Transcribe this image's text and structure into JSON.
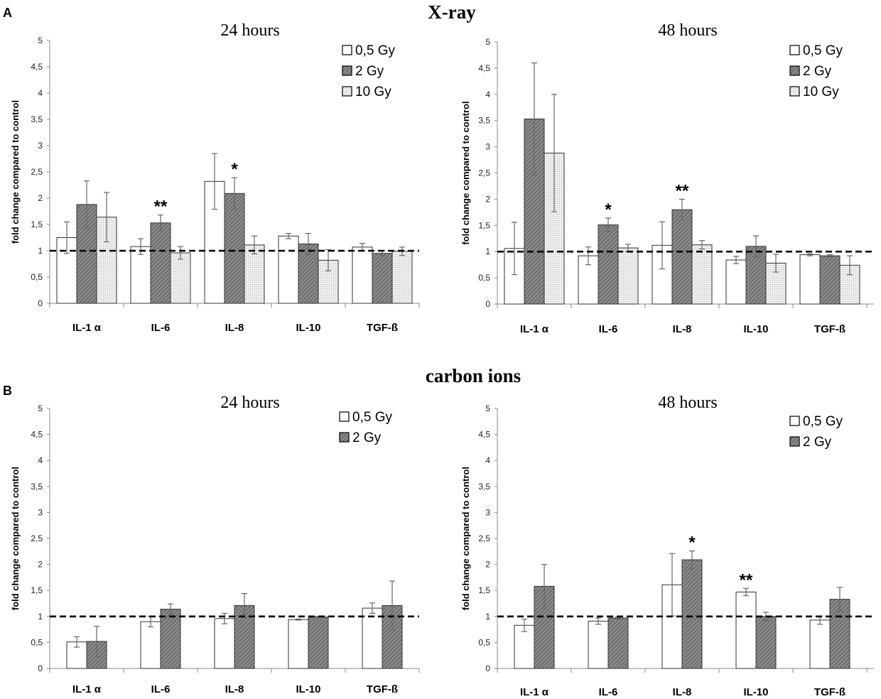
{
  "figure": {
    "sections": [
      {
        "letter": "A",
        "title": "X-ray"
      },
      {
        "letter": "B",
        "title": "carbon ions"
      }
    ]
  },
  "colors": {
    "series_fills": [
      "#ffffff",
      "#7f7f7f",
      "#ebebeb"
    ],
    "bar_stroke": "#333333",
    "error_bar": "#666666",
    "reference_line": "#000000"
  },
  "chart_data": [
    {
      "type": "bar",
      "section": "X-ray",
      "title": "24 hours",
      "ylabel": "fold change compared to control",
      "xlabel": "",
      "ylim": [
        0,
        5
      ],
      "yticks": [
        "0",
        "0,5",
        "1",
        "1,5",
        "2",
        "2,5",
        "3",
        "3,5",
        "4",
        "4,5",
        "5"
      ],
      "grid": false,
      "legend_position": "top-right",
      "reference_line": 1,
      "categories": [
        "IL-1 α",
        "IL-6",
        "IL-8",
        "IL-10",
        "TGF-ß"
      ],
      "series": [
        {
          "name": "0,5 Gy",
          "pattern": "plain",
          "values": [
            1.25,
            1.08,
            2.32,
            1.28,
            1.07
          ],
          "errors": [
            0.3,
            0.15,
            0.53,
            0.05,
            0.07
          ],
          "sig": [
            "",
            "",
            "",
            "",
            ""
          ]
        },
        {
          "name": "2 Gy",
          "pattern": "hatch",
          "values": [
            1.88,
            1.53,
            2.09,
            1.13,
            0.95
          ],
          "errors": [
            0.45,
            0.15,
            0.3,
            0.2,
            0.05
          ],
          "sig": [
            "",
            "**",
            "*",
            "",
            ""
          ]
        },
        {
          "name": "10 Gy",
          "pattern": "dots",
          "values": [
            1.64,
            0.96,
            1.11,
            0.82,
            0.99
          ],
          "errors": [
            0.47,
            0.12,
            0.17,
            0.2,
            0.08
          ],
          "sig": [
            "",
            "",
            "",
            "",
            ""
          ]
        }
      ]
    },
    {
      "type": "bar",
      "section": "X-ray",
      "title": "48 hours",
      "ylabel": "fold change compared to control",
      "xlabel": "",
      "ylim": [
        0,
        5
      ],
      "yticks": [
        "0",
        "0,5",
        "1",
        "1,5",
        "2",
        "2,5",
        "3",
        "3,5",
        "4",
        "4,5",
        "5"
      ],
      "grid": false,
      "legend_position": "top-right",
      "reference_line": 1,
      "categories": [
        "IL-1 α",
        "IL-6",
        "IL-8",
        "IL-10",
        "TGF-ß"
      ],
      "series": [
        {
          "name": "0,5 Gy",
          "pattern": "plain",
          "values": [
            1.06,
            0.92,
            1.12,
            0.84,
            0.94
          ],
          "errors": [
            0.5,
            0.17,
            0.45,
            0.07,
            0.02
          ],
          "sig": [
            "",
            "",
            "",
            "",
            ""
          ]
        },
        {
          "name": "2 Gy",
          "pattern": "hatch",
          "values": [
            3.53,
            1.51,
            1.8,
            1.1,
            0.92
          ],
          "errors": [
            1.07,
            0.13,
            0.2,
            0.2,
            0.02
          ],
          "sig": [
            "",
            "*",
            "**",
            "",
            ""
          ]
        },
        {
          "name": "10 Gy",
          "pattern": "dots",
          "values": [
            2.88,
            1.07,
            1.13,
            0.78,
            0.74
          ],
          "errors": [
            1.12,
            0.07,
            0.08,
            0.17,
            0.18
          ],
          "sig": [
            "",
            "",
            "",
            "",
            ""
          ]
        }
      ]
    },
    {
      "type": "bar",
      "section": "carbon ions",
      "title": "24 hours",
      "ylabel": "fold change compared to control",
      "xlabel": "",
      "ylim": [
        0,
        5
      ],
      "yticks": [
        "0",
        "0,5",
        "1",
        "1,5",
        "2",
        "2,5",
        "3",
        "3,5",
        "4",
        "4,5",
        "5"
      ],
      "grid": false,
      "legend_position": "top-right",
      "reference_line": 1,
      "categories": [
        "IL-1 α",
        "IL-6",
        "IL-8",
        "IL-10",
        "TGF-ß"
      ],
      "series": [
        {
          "name": "0,5 Gy",
          "pattern": "plain",
          "values": [
            0.51,
            0.9,
            0.96,
            0.94,
            1.16
          ],
          "errors": [
            0.1,
            0.1,
            0.1,
            0.01,
            0.1
          ],
          "sig": [
            "",
            "",
            "",
            "",
            ""
          ]
        },
        {
          "name": "2 Gy",
          "pattern": "hatch",
          "values": [
            0.52,
            1.14,
            1.21,
            0.99,
            1.21
          ],
          "errors": [
            0.29,
            0.1,
            0.23,
            0.01,
            0.47
          ],
          "sig": [
            "",
            "",
            "",
            "",
            ""
          ]
        }
      ]
    },
    {
      "type": "bar",
      "section": "carbon ions",
      "title": "48 hours",
      "ylabel": "fold change compared to control",
      "xlabel": "",
      "ylim": [
        0,
        5
      ],
      "yticks": [
        "0",
        "0,5",
        "1",
        "1,5",
        "2",
        "2,5",
        "3",
        "3,5",
        "4",
        "4,5",
        "5"
      ],
      "grid": false,
      "legend_position": "top-right",
      "reference_line": 1,
      "categories": [
        "IL-1 α",
        "IL-6",
        "IL-8",
        "IL-10",
        "TGF-ß"
      ],
      "series": [
        {
          "name": "0,5 Gy",
          "pattern": "plain",
          "values": [
            0.83,
            0.91,
            1.61,
            1.47,
            0.93
          ],
          "errors": [
            0.12,
            0.06,
            0.6,
            0.07,
            0.08
          ],
          "sig": [
            "",
            "",
            "",
            "**",
            ""
          ]
        },
        {
          "name": "2 Gy",
          "pattern": "hatch",
          "values": [
            1.58,
            0.97,
            2.09,
            1.0,
            1.33
          ],
          "errors": [
            0.42,
            0.02,
            0.17,
            0.08,
            0.23
          ],
          "sig": [
            "",
            "",
            "*",
            "",
            ""
          ]
        }
      ]
    }
  ]
}
